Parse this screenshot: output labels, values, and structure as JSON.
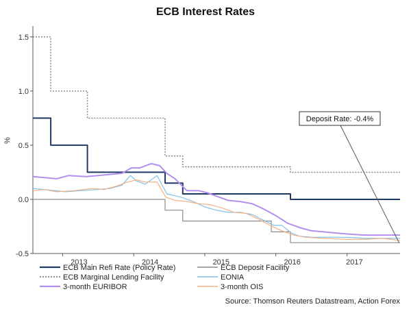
{
  "chart_data": {
    "type": "line",
    "title": "ECB Interest Rates",
    "ylabel": "%",
    "ylim": [
      -0.5,
      1.6
    ],
    "y_ticks": [
      -0.5,
      0.0,
      0.5,
      1.0,
      1.5
    ],
    "y_tick_labels": [
      "-0.5",
      "0.0",
      "0.5",
      "1.0",
      "1.5"
    ],
    "xlim": [
      "2012-08-01",
      "2017-09-30"
    ],
    "x_ticks": [
      "2013-01-01",
      "2014-01-01",
      "2015-01-01",
      "2016-01-01",
      "2017-01-01"
    ],
    "x_tick_labels": [
      "2013",
      "2014",
      "2015",
      "2016",
      "2017"
    ],
    "grid": false,
    "legend_position": "bottom",
    "annotation": {
      "text": "Deposit Rate: -0.4%",
      "x": "2017-09-25",
      "y": -0.4
    },
    "source": "Source: Thomson Reuters Datastream, Action Forex",
    "series": [
      {
        "name": "ECB Main Refi Rate (Policy Rate)",
        "color": "#1f3864",
        "style": "solid-thick",
        "points": [
          [
            "2012-08-01",
            0.75
          ],
          [
            "2012-11-01",
            0.75
          ],
          [
            "2012-11-01",
            0.5
          ],
          [
            "2013-05-08",
            0.5
          ],
          [
            "2013-05-08",
            0.25
          ],
          [
            "2014-06-11",
            0.25
          ],
          [
            "2014-06-11",
            0.15
          ],
          [
            "2014-09-10",
            0.15
          ],
          [
            "2014-09-10",
            0.05
          ],
          [
            "2016-03-16",
            0.05
          ],
          [
            "2016-03-16",
            0.0
          ],
          [
            "2017-09-30",
            0.0
          ]
        ]
      },
      {
        "name": "ECB Deposit Facility",
        "color": "#8c8c8c",
        "style": "solid",
        "points": [
          [
            "2012-08-01",
            0.0
          ],
          [
            "2014-06-11",
            0.0
          ],
          [
            "2014-06-11",
            -0.1
          ],
          [
            "2014-09-10",
            -0.1
          ],
          [
            "2014-09-10",
            -0.2
          ],
          [
            "2015-12-09",
            -0.2
          ],
          [
            "2015-12-09",
            -0.3
          ],
          [
            "2016-03-16",
            -0.3
          ],
          [
            "2016-03-16",
            -0.4
          ],
          [
            "2017-09-30",
            -0.4
          ]
        ]
      },
      {
        "name": "ECB Marginal Lending Facility",
        "color": "#7f7f7f",
        "style": "dotted",
        "points": [
          [
            "2012-08-01",
            1.5
          ],
          [
            "2012-11-01",
            1.5
          ],
          [
            "2012-11-01",
            1.0
          ],
          [
            "2013-05-08",
            1.0
          ],
          [
            "2013-05-08",
            0.75
          ],
          [
            "2013-11-13",
            0.75
          ],
          [
            "2013-11-13",
            0.75
          ],
          [
            "2014-06-11",
            0.75
          ],
          [
            "2014-06-11",
            0.4
          ],
          [
            "2014-09-10",
            0.4
          ],
          [
            "2014-09-10",
            0.3
          ],
          [
            "2016-03-16",
            0.3
          ],
          [
            "2016-03-16",
            0.25
          ],
          [
            "2017-09-30",
            0.25
          ]
        ]
      },
      {
        "name": "EONIA",
        "color": "#7fbfe8",
        "style": "solid",
        "points": [
          [
            "2012-08-01",
            0.1
          ],
          [
            "2012-10-01",
            0.09
          ],
          [
            "2013-01-15",
            0.07
          ],
          [
            "2013-04-01",
            0.08
          ],
          [
            "2013-07-01",
            0.09
          ],
          [
            "2013-09-01",
            0.1
          ],
          [
            "2013-11-01",
            0.13
          ],
          [
            "2013-12-15",
            0.22
          ],
          [
            "2014-01-15",
            0.17
          ],
          [
            "2014-03-01",
            0.14
          ],
          [
            "2014-05-01",
            0.22
          ],
          [
            "2014-06-20",
            0.05
          ],
          [
            "2014-09-01",
            0.02
          ],
          [
            "2014-11-01",
            -0.02
          ],
          [
            "2015-01-01",
            -0.07
          ],
          [
            "2015-03-01",
            -0.1
          ],
          [
            "2015-05-01",
            -0.12
          ],
          [
            "2015-07-01",
            -0.12
          ],
          [
            "2015-09-01",
            -0.14
          ],
          [
            "2015-10-15",
            -0.18
          ],
          [
            "2015-12-20",
            -0.24
          ],
          [
            "2016-02-01",
            -0.24
          ],
          [
            "2016-03-20",
            -0.31
          ],
          [
            "2016-05-01",
            -0.34
          ],
          [
            "2016-07-01",
            -0.35
          ],
          [
            "2016-10-01",
            -0.35
          ],
          [
            "2017-01-01",
            -0.35
          ],
          [
            "2017-04-01",
            -0.36
          ],
          [
            "2017-07-01",
            -0.36
          ],
          [
            "2017-09-30",
            -0.36
          ]
        ]
      },
      {
        "name": "3-month EURIBOR",
        "color": "#b28ef0",
        "style": "solid-thick",
        "points": [
          [
            "2012-08-01",
            0.21
          ],
          [
            "2012-10-01",
            0.2
          ],
          [
            "2012-12-01",
            0.19
          ],
          [
            "2013-02-01",
            0.22
          ],
          [
            "2013-05-01",
            0.21
          ],
          [
            "2013-07-01",
            0.22
          ],
          [
            "2013-09-01",
            0.23
          ],
          [
            "2013-11-01",
            0.24
          ],
          [
            "2013-12-20",
            0.29
          ],
          [
            "2014-02-01",
            0.29
          ],
          [
            "2014-04-01",
            0.33
          ],
          [
            "2014-05-15",
            0.31
          ],
          [
            "2014-06-20",
            0.24
          ],
          [
            "2014-08-01",
            0.19
          ],
          [
            "2014-10-01",
            0.08
          ],
          [
            "2014-12-01",
            0.08
          ],
          [
            "2015-01-15",
            0.06
          ],
          [
            "2015-03-01",
            0.03
          ],
          [
            "2015-05-01",
            -0.01
          ],
          [
            "2015-07-01",
            -0.02
          ],
          [
            "2015-09-01",
            -0.04
          ],
          [
            "2015-11-01",
            -0.09
          ],
          [
            "2016-01-01",
            -0.15
          ],
          [
            "2016-03-01",
            -0.22
          ],
          [
            "2016-05-01",
            -0.26
          ],
          [
            "2016-07-01",
            -0.29
          ],
          [
            "2016-09-01",
            -0.3
          ],
          [
            "2016-11-01",
            -0.31
          ],
          [
            "2017-01-01",
            -0.32
          ],
          [
            "2017-04-01",
            -0.33
          ],
          [
            "2017-07-01",
            -0.33
          ],
          [
            "2017-09-30",
            -0.33
          ]
        ]
      },
      {
        "name": "3-month OIS",
        "color": "#f4b183",
        "style": "solid",
        "points": [
          [
            "2012-08-01",
            0.08
          ],
          [
            "2012-10-01",
            0.09
          ],
          [
            "2012-12-01",
            0.07
          ],
          [
            "2013-03-01",
            0.08
          ],
          [
            "2013-06-01",
            0.1
          ],
          [
            "2013-08-01",
            0.09
          ],
          [
            "2013-10-01",
            0.12
          ],
          [
            "2013-12-01",
            0.16
          ],
          [
            "2014-01-15",
            0.18
          ],
          [
            "2014-03-01",
            0.16
          ],
          [
            "2014-05-01",
            0.16
          ],
          [
            "2014-06-15",
            0.02
          ],
          [
            "2014-08-01",
            -0.01
          ],
          [
            "2014-10-01",
            -0.02
          ],
          [
            "2014-12-01",
            -0.04
          ],
          [
            "2015-02-01",
            -0.05
          ],
          [
            "2015-04-01",
            -0.08
          ],
          [
            "2015-06-01",
            -0.12
          ],
          [
            "2015-08-01",
            -0.13
          ],
          [
            "2015-10-01",
            -0.18
          ],
          [
            "2015-12-01",
            -0.24
          ],
          [
            "2016-02-01",
            -0.29
          ],
          [
            "2016-04-01",
            -0.33
          ],
          [
            "2016-06-01",
            -0.35
          ],
          [
            "2016-09-01",
            -0.36
          ],
          [
            "2017-01-01",
            -0.37
          ],
          [
            "2017-04-01",
            -0.37
          ],
          [
            "2017-07-01",
            -0.36
          ],
          [
            "2017-09-30",
            -0.38
          ]
        ]
      }
    ]
  }
}
